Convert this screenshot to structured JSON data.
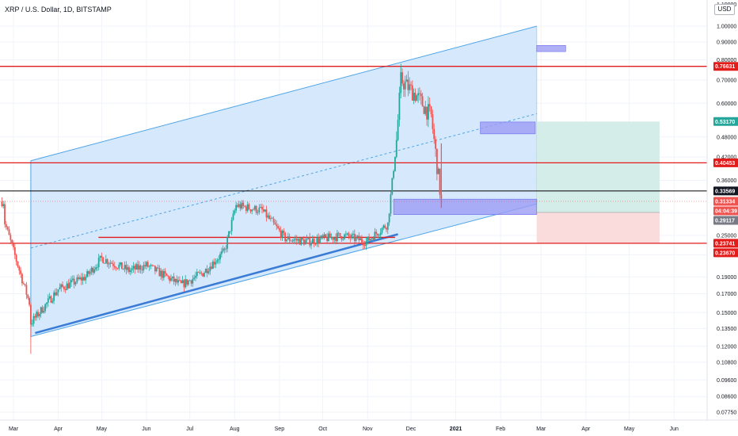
{
  "header": {
    "title": "XRP / U.S. Dollar, 1D, BITSTAMP",
    "currency_button": "USD"
  },
  "colors": {
    "up": "#26a69a",
    "down": "#ef5350",
    "hline": "#e21b1b",
    "channel_fill": "#cfe5fb",
    "channel_line": "#4ea4e6",
    "zone": "#9c9cf5",
    "long_profit": "#d5ede8",
    "long_loss": "#fbdcdc",
    "current_line": "#000000"
  },
  "chart_data": {
    "type": "candlestick",
    "symbol": "XRP / U.S. Dollar",
    "interval": "1D",
    "exchange": "BITSTAMP",
    "y_scale": "log",
    "y_ticks": [
      1.0,
      0.9,
      0.8,
      0.7,
      0.6,
      0.48,
      0.42,
      0.36,
      0.29,
      0.25,
      0.22,
      0.19,
      0.17,
      0.15,
      0.135,
      0.12,
      0.108,
      0.096,
      0.086,
      0.0775
    ],
    "y_tick_labels": [
      "1.00000",
      "0.90000",
      "0.80000",
      "0.70000",
      "0.60000",
      "0.48000",
      "0.42000",
      "0.36000",
      "0.29000",
      "0.25000",
      "0.22000",
      "0.19000",
      "0.17000",
      "0.15000",
      "0.13500",
      "0.12000",
      "0.10800",
      "0.09600",
      "0.08600",
      "0.07750"
    ],
    "top_partial_label": "1.10000",
    "x_ticks": [
      "Mar",
      "Apr",
      "May",
      "Jun",
      "Jul",
      "Aug",
      "Sep",
      "Oct",
      "Nov",
      "Dec",
      "2021",
      "Feb",
      "Mar",
      "Apr",
      "May",
      "Jun"
    ],
    "price_markers": [
      {
        "label": "0.76631",
        "value": 0.76631,
        "kind": "level"
      },
      {
        "label": "0.53170",
        "value": 0.5317,
        "kind": "target"
      },
      {
        "label": "0.40453",
        "value": 0.40453,
        "kind": "level"
      },
      {
        "label": "0.33569",
        "value": 0.33569,
        "kind": "crosshair"
      },
      {
        "label": "0.31334",
        "value": 0.31334,
        "kind": "last"
      },
      {
        "label": "04:04:39",
        "value": 0.3,
        "kind": "countdown"
      },
      {
        "label": "0.29117",
        "value": 0.29117,
        "kind": "entry"
      },
      {
        "label": "0.23741",
        "value": 0.23741,
        "kind": "level"
      },
      {
        "label": "0.23670",
        "value": 0.2367,
        "kind": "stop"
      }
    ],
    "horizontal_levels": [
      0.76631,
      0.40453,
      0.23741
    ],
    "short_level": {
      "value": 0.2468,
      "from": "May",
      "label": ""
    },
    "crosshair_level": 0.33569,
    "channel": {
      "lower_start": [
        "2020-03-13",
        0.128
      ],
      "lower_end": [
        "2021-02-26",
        0.308
      ],
      "upper_start": [
        "2020-03-13",
        0.41
      ],
      "upper_end": [
        "2021-02-26",
        1.0
      ],
      "mid_start": [
        "2020-03-13",
        0.23
      ],
      "mid_end": [
        "2021-02-26",
        0.56
      ]
    },
    "zones": [
      {
        "name": "supply-zone-top",
        "from": "2021-02-26",
        "to": "2021-03-18",
        "high": 0.88,
        "low": 0.845
      },
      {
        "name": "supply-zone-mid",
        "from": "2021-01-18",
        "to": "2021-02-25",
        "high": 0.53,
        "low": 0.49
      },
      {
        "name": "demand-zone",
        "from": "2020-11-19",
        "to": "2021-02-26",
        "high": 0.318,
        "low": 0.287
      }
    ],
    "long_position": {
      "from": "2021-02-26",
      "to": "2021-05-22",
      "entry": 0.29117,
      "target": 0.5317,
      "stop": 0.2367
    },
    "candles_ohlc_summary": [
      {
        "date": "2020-02-24",
        "close": 0.272
      },
      {
        "date": "2020-03-12",
        "close": 0.16
      },
      {
        "date": "2020-03-13",
        "low": 0.114,
        "close": 0.14
      },
      {
        "date": "2020-04-01",
        "close": 0.175
      },
      {
        "date": "2020-04-20",
        "close": 0.19
      },
      {
        "date": "2020-05-01",
        "close": 0.215
      },
      {
        "date": "2020-05-20",
        "close": 0.198
      },
      {
        "date": "2020-06-01",
        "close": 0.205
      },
      {
        "date": "2020-06-25",
        "close": 0.18
      },
      {
        "date": "2020-07-10",
        "close": 0.195
      },
      {
        "date": "2020-07-25",
        "close": 0.225
      },
      {
        "date": "2020-08-02",
        "close": 0.305
      },
      {
        "date": "2020-08-20",
        "close": 0.295
      },
      {
        "date": "2020-09-05",
        "close": 0.245
      },
      {
        "date": "2020-09-20",
        "close": 0.24
      },
      {
        "date": "2020-10-15",
        "close": 0.25
      },
      {
        "date": "2020-10-31",
        "close": 0.24
      },
      {
        "date": "2020-11-15",
        "close": 0.27
      },
      {
        "date": "2020-11-21",
        "close": 0.47
      },
      {
        "date": "2020-11-24",
        "high": 0.78,
        "close": 0.7
      },
      {
        "date": "2020-12-05",
        "close": 0.63
      },
      {
        "date": "2020-12-15",
        "close": 0.55
      },
      {
        "date": "2020-12-22",
        "low": 0.3,
        "close": 0.313
      }
    ]
  }
}
